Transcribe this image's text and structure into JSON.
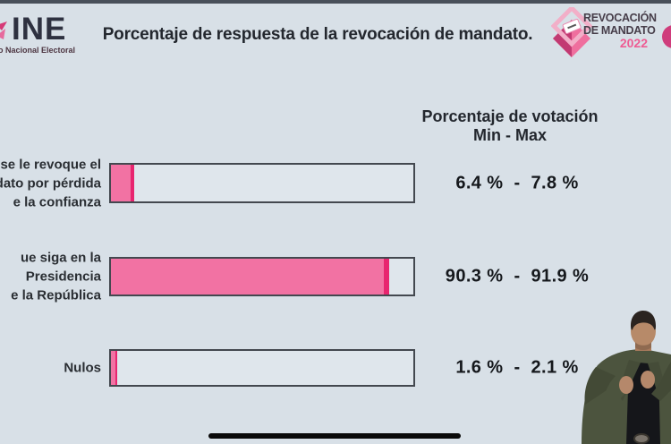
{
  "header": {
    "ine": {
      "name": "INE",
      "sub": "o Nacional Electoral"
    },
    "title": "Porcentaje de respuesta de la revocación de mandato.",
    "rm_badge": {
      "line1": "REVOCACIÓN",
      "line2": "DE MANDATO",
      "year": "2022"
    }
  },
  "colors": {
    "background": "#d8e0e7",
    "bar_fill_min": "#f272a3",
    "bar_fill_range": "#e8256f",
    "bar_border": "#43484f",
    "accent_pink": "#e0447f"
  },
  "chart_data": {
    "type": "bar",
    "orientation": "horizontal",
    "title": "Porcentaje de respuesta de la revocación de mandato.",
    "value_header_line1": "Porcentaje de votación",
    "value_header_line2": "Min - Max",
    "xlim": [
      0,
      100
    ],
    "separator": "-",
    "rows": [
      {
        "label_line1": "se le revoque el",
        "label_line2": "dato por pérdida",
        "label_line3": "e la confianza",
        "min": 6.4,
        "max": 7.8,
        "min_text": "6.4 %",
        "max_text": "7.8 %"
      },
      {
        "label_line1": "ue siga en la",
        "label_line2": "Presidencia",
        "label_line3": "e la República",
        "min": 90.3,
        "max": 91.9,
        "min_text": "90.3 %",
        "max_text": "91.9 %"
      },
      {
        "label_line1": "Nulos",
        "min": 1.6,
        "max": 2.1,
        "min_text": "1.6 %",
        "max_text": "2.1 %"
      }
    ]
  }
}
